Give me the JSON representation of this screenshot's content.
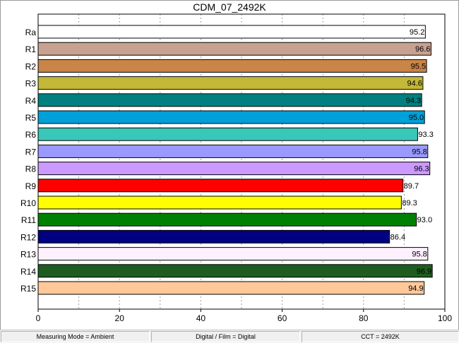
{
  "chart_data": {
    "type": "bar",
    "orientation": "horizontal",
    "title": "CDM_07_2492K",
    "categories": [
      "Ra",
      "R1",
      "R2",
      "R3",
      "R4",
      "R5",
      "R6",
      "R7",
      "R8",
      "R9",
      "R10",
      "R11",
      "R12",
      "R13",
      "R14",
      "R15"
    ],
    "values": [
      95.2,
      96.6,
      95.5,
      94.6,
      94.3,
      95.0,
      93.3,
      95.8,
      96.3,
      89.7,
      89.3,
      93.0,
      86.4,
      95.8,
      96.9,
      94.9
    ],
    "value_labels": [
      "95.2",
      "96.6",
      "95.5",
      "94.6",
      "94.3",
      "95.0",
      "93.3",
      "95.8",
      "96.3",
      "89.7",
      "89.3",
      "93.0",
      "86.4",
      "95.8",
      "96.9",
      "94.9"
    ],
    "colors": [
      "#ffffff",
      "#c8a290",
      "#c98448",
      "#c3b837",
      "#008080",
      "#00a0d8",
      "#38c7b8",
      "#9999ff",
      "#cc99ff",
      "#ff0000",
      "#ffff00",
      "#008000",
      "#000080",
      "#fff0ff",
      "#1f5c1f",
      "#ffc899"
    ],
    "xlim": [
      0,
      100
    ],
    "xticks": [
      0,
      20,
      40,
      60,
      80,
      100
    ],
    "xgrid": [
      10,
      20,
      30,
      40,
      50,
      60,
      70,
      80,
      90
    ],
    "grid": true,
    "xlabel": "",
    "ylabel": ""
  },
  "status_bar": {
    "measuring_mode": "Measuring Mode = Ambient",
    "digital_film": "Digital / Film = Digital",
    "cct": "CCT = 2492K"
  }
}
